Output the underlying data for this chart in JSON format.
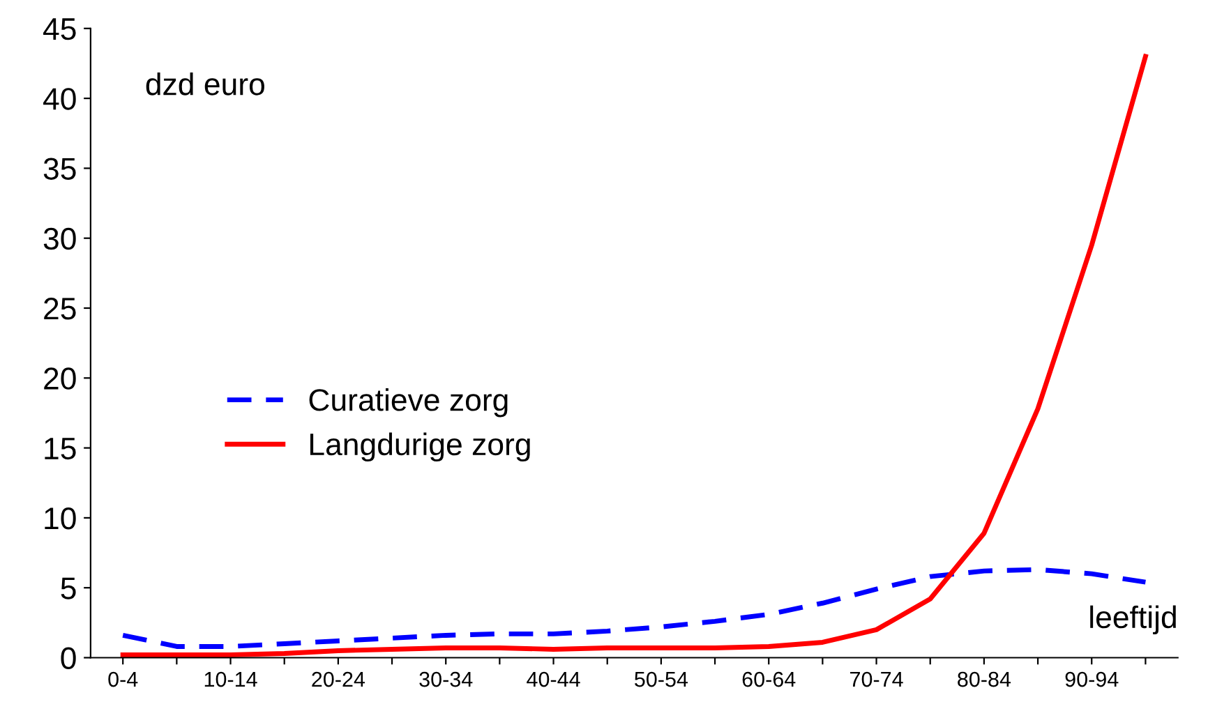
{
  "chart_data": {
    "type": "line",
    "categories": [
      "0-4",
      null,
      "10-14",
      null,
      "20-24",
      null,
      "30-34",
      null,
      "40-44",
      null,
      "50-54",
      null,
      "60-64",
      null,
      "70-74",
      null,
      "80-84",
      null,
      "90-94",
      null
    ],
    "series": [
      {
        "name": "Curatieve zorg",
        "color": "#0000ff",
        "line_style": "dashed",
        "values": [
          1.6,
          0.8,
          0.8,
          1.0,
          1.2,
          1.4,
          1.6,
          1.7,
          1.7,
          1.9,
          2.2,
          2.6,
          3.1,
          3.9,
          4.9,
          5.8,
          6.2,
          6.3,
          6.0,
          5.4
        ]
      },
      {
        "name": "Langdurige zorg",
        "color": "#ff0000",
        "line_style": "solid",
        "values": [
          0.2,
          0.2,
          0.2,
          0.3,
          0.5,
          0.6,
          0.7,
          0.7,
          0.6,
          0.7,
          0.7,
          0.7,
          0.8,
          1.1,
          2.0,
          4.2,
          8.9,
          17.8,
          29.5,
          43
        ]
      }
    ],
    "ylim": [
      0,
      45
    ],
    "yticks": [
      0,
      5,
      10,
      15,
      20,
      25,
      30,
      35,
      40,
      45
    ],
    "annotations": [
      "dzd euro",
      "leeftijd"
    ],
    "legend": "left",
    "grid": false
  }
}
